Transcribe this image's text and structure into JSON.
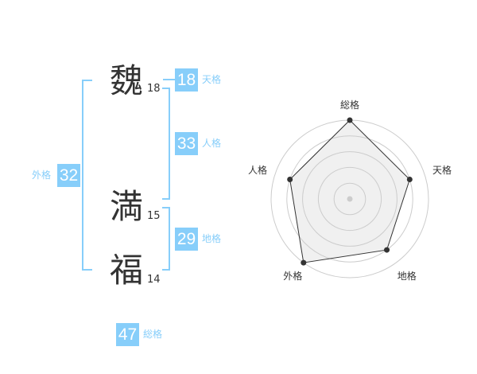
{
  "name": [
    {
      "char": "魏",
      "strokes": "18"
    },
    {
      "char": "満",
      "strokes": "15"
    },
    {
      "char": "福",
      "strokes": "14"
    }
  ],
  "fortunes": {
    "tenkaku": {
      "label": "天格",
      "value": "18"
    },
    "jinkaku": {
      "label": "人格",
      "value": "33"
    },
    "chikaku": {
      "label": "地格",
      "value": "29"
    },
    "gaikaku": {
      "label": "外格",
      "value": "32"
    },
    "soukaku": {
      "label": "総格",
      "value": "47"
    }
  },
  "accent_color": "#87cefa",
  "chart_data": {
    "type": "radar",
    "axes": [
      "総格",
      "天格",
      "地格",
      "外格",
      "人格"
    ],
    "values": [
      5,
      4,
      4,
      5,
      4
    ],
    "range": [
      0,
      5
    ],
    "grid": "concentric circles"
  }
}
